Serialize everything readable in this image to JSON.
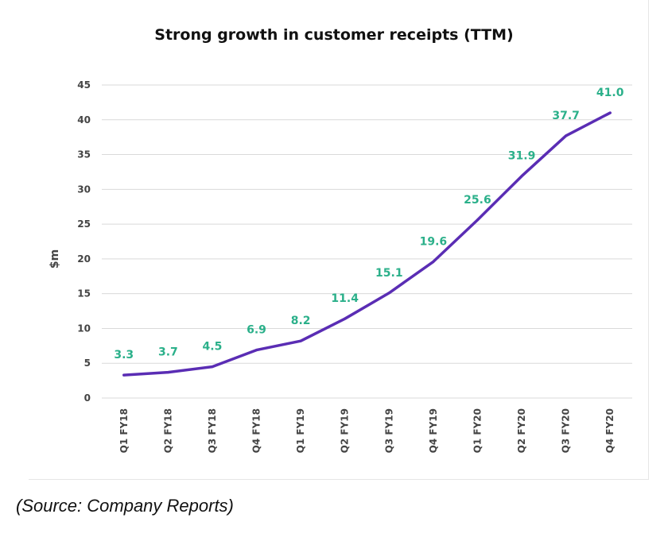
{
  "chart_data": {
    "type": "line",
    "title": "Strong growth in customer receipts (TTM)",
    "xlabel": "",
    "ylabel": "$m",
    "categories": [
      "Q1 FY18",
      "Q2 FY18",
      "Q3 FY18",
      "Q4 FY18",
      "Q1 FY19",
      "Q2 FY19",
      "Q3 FY19",
      "Q4 FY19",
      "Q1 FY20",
      "Q2 FY20",
      "Q3 FY20",
      "Q4 FY20"
    ],
    "values": [
      3.3,
      3.7,
      4.5,
      6.9,
      8.2,
      11.4,
      15.1,
      19.6,
      25.6,
      31.9,
      37.7,
      41.0
    ],
    "data_labels": [
      "3.3",
      "3.7",
      "4.5",
      "6.9",
      "8.2",
      "11.4",
      "15.1",
      "19.6",
      "25.6",
      "31.9",
      "37.7",
      "41.0"
    ],
    "ylim": [
      0,
      45
    ],
    "yticks": [
      0,
      5,
      10,
      15,
      20,
      25,
      30,
      35,
      40,
      45
    ],
    "grid": true,
    "legend": "none",
    "colors": {
      "line": "#5a2db4",
      "labels": "#2bb08a"
    }
  },
  "source": "(Source: Company Reports)"
}
